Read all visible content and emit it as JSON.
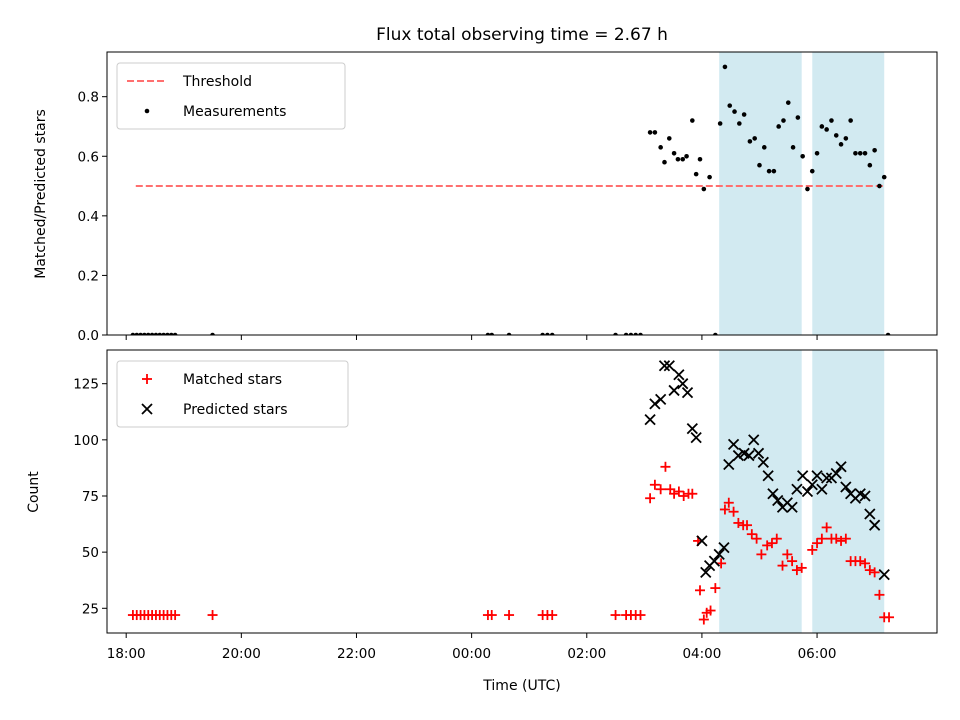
{
  "figure": {
    "title": "Flux total observing time = 2.67 h",
    "xlabel": "Time (UTC)"
  },
  "colors": {
    "threshold": "#ff6f6f",
    "measurements": "#000000",
    "matched": "#ff0000",
    "predicted": "#000000",
    "shade": "#add8e6"
  },
  "chart_data": [
    {
      "type": "scatter",
      "ylabel": "Matched/Predicted stars",
      "xlim": [
        "17:40",
        "32:05"
      ],
      "ylim": [
        0,
        0.95
      ],
      "yticks": [
        0.0,
        0.2,
        0.4,
        0.6,
        0.8
      ],
      "ytick_labels": [
        "0.0",
        "0.2",
        "0.4",
        "0.6",
        "0.8"
      ],
      "legend": {
        "position": "upper-left",
        "entries": [
          "Threshold",
          "Measurements"
        ]
      },
      "threshold": {
        "name": "Threshold",
        "value": 0.5,
        "x_range": [
          "18:10",
          "31:10"
        ]
      },
      "shaded_intervals": [
        [
          "28:18",
          "29:44"
        ],
        [
          "29:55",
          "31:10"
        ]
      ],
      "series": [
        {
          "name": "Measurements",
          "points": [
            [
              "18:07",
              0
            ],
            [
              "18:11",
              0
            ],
            [
              "18:15",
              0
            ],
            [
              "18:19",
              0
            ],
            [
              "18:23",
              0
            ],
            [
              "18:27",
              0
            ],
            [
              "18:31",
              0
            ],
            [
              "18:35",
              0
            ],
            [
              "18:39",
              0
            ],
            [
              "18:43",
              0
            ],
            [
              "18:47",
              0
            ],
            [
              "18:51",
              0
            ],
            [
              "19:30",
              0
            ],
            [
              "24:17",
              0
            ],
            [
              "24:21",
              0
            ],
            [
              "24:39",
              0
            ],
            [
              "25:14",
              0
            ],
            [
              "25:19",
              0
            ],
            [
              "25:24",
              0
            ],
            [
              "26:30",
              0
            ],
            [
              "26:41",
              0
            ],
            [
              "26:46",
              0
            ],
            [
              "26:51",
              0
            ],
            [
              "26:56",
              0
            ],
            [
              "27:06",
              0.68
            ],
            [
              "27:11",
              0.68
            ],
            [
              "27:17",
              0.63
            ],
            [
              "27:21",
              0.58
            ],
            [
              "27:26",
              0.66
            ],
            [
              "27:31",
              0.61
            ],
            [
              "27:35",
              0.59
            ],
            [
              "27:40",
              0.59
            ],
            [
              "27:44",
              0.6
            ],
            [
              "27:50",
              0.72
            ],
            [
              "27:54",
              0.54
            ],
            [
              "27:58",
              0.59
            ],
            [
              "28:02",
              0.49
            ],
            [
              "28:08",
              0.53
            ],
            [
              "28:14",
              0
            ],
            [
              "28:19",
              0.71
            ],
            [
              "28:24",
              0.9
            ],
            [
              "28:29",
              0.77
            ],
            [
              "28:34",
              0.75
            ],
            [
              "28:39",
              0.71
            ],
            [
              "28:44",
              0.74
            ],
            [
              "28:50",
              0.65
            ],
            [
              "28:55",
              0.66
            ],
            [
              "29:00",
              0.57
            ],
            [
              "29:05",
              0.63
            ],
            [
              "29:10",
              0.55
            ],
            [
              "29:15",
              0.55
            ],
            [
              "29:20",
              0.7
            ],
            [
              "29:25",
              0.72
            ],
            [
              "29:30",
              0.78
            ],
            [
              "29:35",
              0.63
            ],
            [
              "29:40",
              0.73
            ],
            [
              "29:45",
              0.6
            ],
            [
              "29:50",
              0.49
            ],
            [
              "29:55",
              0.55
            ],
            [
              "30:00",
              0.61
            ],
            [
              "30:05",
              0.7
            ],
            [
              "30:10",
              0.69
            ],
            [
              "30:15",
              0.72
            ],
            [
              "30:20",
              0.67
            ],
            [
              "30:25",
              0.64
            ],
            [
              "30:30",
              0.66
            ],
            [
              "30:35",
              0.72
            ],
            [
              "30:40",
              0.61
            ],
            [
              "30:45",
              0.61
            ],
            [
              "30:50",
              0.61
            ],
            [
              "30:55",
              0.57
            ],
            [
              "31:00",
              0.62
            ],
            [
              "31:05",
              0.5
            ],
            [
              "31:10",
              0.53
            ],
            [
              "31:14",
              0
            ]
          ]
        }
      ]
    },
    {
      "type": "scatter",
      "ylabel": "Count",
      "xlim": [
        "17:40",
        "32:05"
      ],
      "ylim": [
        14,
        140
      ],
      "yticks": [
        25,
        50,
        75,
        100,
        125
      ],
      "ytick_labels": [
        "25",
        "50",
        "75",
        "100",
        "125"
      ],
      "xticks": [
        "18:00",
        "20:00",
        "22:00",
        "00:00",
        "02:00",
        "04:00",
        "06:00"
      ],
      "legend": {
        "position": "upper-left",
        "entries": [
          "Matched stars",
          "Predicted stars"
        ]
      },
      "shaded_intervals": [
        [
          "28:18",
          "29:44"
        ],
        [
          "29:55",
          "31:10"
        ]
      ],
      "series": [
        {
          "name": "Matched stars",
          "points": [
            [
              "18:07",
              22
            ],
            [
              "18:11",
              22
            ],
            [
              "18:15",
              22
            ],
            [
              "18:19",
              22
            ],
            [
              "18:23",
              22
            ],
            [
              "18:27",
              22
            ],
            [
              "18:31",
              22
            ],
            [
              "18:35",
              22
            ],
            [
              "18:39",
              22
            ],
            [
              "18:43",
              22
            ],
            [
              "18:47",
              22
            ],
            [
              "18:51",
              22
            ],
            [
              "19:30",
              22
            ],
            [
              "24:17",
              22
            ],
            [
              "24:21",
              22
            ],
            [
              "24:39",
              22
            ],
            [
              "25:14",
              22
            ],
            [
              "25:19",
              22
            ],
            [
              "25:24",
              22
            ],
            [
              "26:30",
              22
            ],
            [
              "26:41",
              22
            ],
            [
              "26:46",
              22
            ],
            [
              "26:51",
              22
            ],
            [
              "26:56",
              22
            ],
            [
              "27:06",
              74
            ],
            [
              "27:11",
              80
            ],
            [
              "27:17",
              78
            ],
            [
              "27:22",
              88
            ],
            [
              "27:27",
              78
            ],
            [
              "27:31",
              76
            ],
            [
              "27:36",
              77
            ],
            [
              "27:41",
              75
            ],
            [
              "27:46",
              76
            ],
            [
              "27:50",
              76
            ],
            [
              "27:56",
              55
            ],
            [
              "27:58",
              33
            ],
            [
              "28:02",
              20
            ],
            [
              "28:05",
              23
            ],
            [
              "28:09",
              24
            ],
            [
              "28:14",
              34
            ],
            [
              "28:20",
              45
            ],
            [
              "28:24",
              69
            ],
            [
              "28:28",
              72
            ],
            [
              "28:33",
              68
            ],
            [
              "28:38",
              63
            ],
            [
              "28:43",
              62
            ],
            [
              "28:47",
              62
            ],
            [
              "28:52",
              58
            ],
            [
              "28:57",
              56
            ],
            [
              "29:02",
              49
            ],
            [
              "29:08",
              53
            ],
            [
              "29:13",
              54
            ],
            [
              "29:18",
              56
            ],
            [
              "29:24",
              44
            ],
            [
              "29:29",
              49
            ],
            [
              "29:34",
              46
            ],
            [
              "29:39",
              42
            ],
            [
              "29:44",
              43
            ],
            [
              "29:55",
              51
            ],
            [
              "30:00",
              54
            ],
            [
              "30:05",
              56
            ],
            [
              "30:10",
              61
            ],
            [
              "30:15",
              56
            ],
            [
              "30:20",
              56
            ],
            [
              "30:25",
              55
            ],
            [
              "30:30",
              56
            ],
            [
              "30:35",
              46
            ],
            [
              "30:40",
              46
            ],
            [
              "30:45",
              46
            ],
            [
              "30:50",
              45
            ],
            [
              "30:55",
              42
            ],
            [
              "31:00",
              41
            ],
            [
              "31:05",
              31
            ],
            [
              "31:10",
              21
            ],
            [
              "31:15",
              21
            ]
          ]
        },
        {
          "name": "Predicted stars",
          "points": [
            [
              "27:06",
              109
            ],
            [
              "27:11",
              116
            ],
            [
              "27:17",
              118
            ],
            [
              "27:21",
              133
            ],
            [
              "27:26",
              133
            ],
            [
              "27:31",
              122
            ],
            [
              "27:36",
              129
            ],
            [
              "27:40",
              125
            ],
            [
              "27:45",
              121
            ],
            [
              "27:50",
              105
            ],
            [
              "27:54",
              101
            ],
            [
              "28:00",
              55
            ],
            [
              "28:04",
              41
            ],
            [
              "28:08",
              44
            ],
            [
              "28:13",
              46
            ],
            [
              "28:18",
              49
            ],
            [
              "28:23",
              52
            ],
            [
              "28:28",
              89
            ],
            [
              "28:33",
              98
            ],
            [
              "28:38",
              93
            ],
            [
              "28:44",
              94
            ],
            [
              "28:49",
              93
            ],
            [
              "28:54",
              100
            ],
            [
              "28:59",
              94
            ],
            [
              "29:04",
              90
            ],
            [
              "29:09",
              84
            ],
            [
              "29:14",
              76
            ],
            [
              "29:19",
              73
            ],
            [
              "29:24",
              70
            ],
            [
              "29:29",
              72
            ],
            [
              "29:34",
              70
            ],
            [
              "29:39",
              78
            ],
            [
              "29:45",
              84
            ],
            [
              "29:50",
              77
            ],
            [
              "29:55",
              80
            ],
            [
              "30:00",
              84
            ],
            [
              "30:05",
              78
            ],
            [
              "30:10",
              83
            ],
            [
              "30:15",
              83
            ],
            [
              "30:20",
              85
            ],
            [
              "30:25",
              88
            ],
            [
              "30:30",
              79
            ],
            [
              "30:35",
              76
            ],
            [
              "30:40",
              74
            ],
            [
              "30:45",
              76
            ],
            [
              "30:50",
              75
            ],
            [
              "30:55",
              67
            ],
            [
              "31:00",
              62
            ],
            [
              "31:10",
              40
            ]
          ]
        }
      ]
    }
  ]
}
